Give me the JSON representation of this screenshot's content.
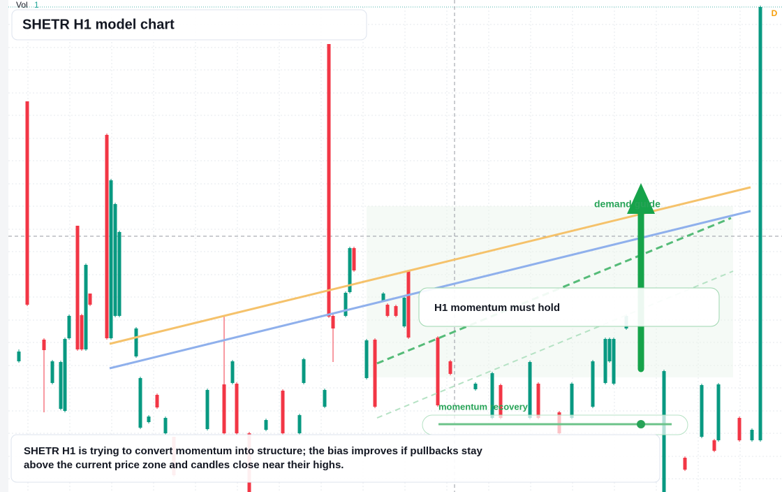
{
  "chart_data": {
    "type": "candlestick",
    "title": "SHETR H1 model chart",
    "volume_label": "Vol",
    "volume_value": "1",
    "interval_badge": "D",
    "annotations": [
      "demand guide",
      "H1 momentum must hold",
      "momentum recovery"
    ],
    "note": "SHETR H1 is trying to convert momentum into structure; the bias improves if pullbacks stay above the current price zone and candles close near their highs.",
    "up_color": "#089981",
    "down_color": "#f23645",
    "xlim": [
      0,
      186
    ],
    "ylim": [
      0,
      70
    ],
    "x": [
      4,
      6,
      10,
      12,
      14,
      15,
      16,
      18,
      19,
      20,
      21,
      25,
      26,
      27,
      28,
      32,
      33,
      35,
      37,
      39,
      41,
      49,
      53,
      55,
      56,
      59,
      63,
      67,
      71,
      72,
      77,
      78,
      79,
      82,
      83,
      84,
      87,
      89,
      91,
      92,
      94,
      96,
      97,
      104,
      107,
      113,
      117,
      119,
      126,
      128,
      133,
      136,
      141,
      144,
      145,
      146,
      149,
      158,
      163,
      167,
      170,
      171,
      176,
      179,
      181
    ],
    "open": [
      18.7,
      55.9,
      21.8,
      15.6,
      11.9,
      11.6,
      22.0,
      38.1,
      25.3,
      20.4,
      28.4,
      51.1,
      22.0,
      25.2,
      25.2,
      19.4,
      9.2,
      10.0,
      13.9,
      8.4,
      7.9,
      9.0,
      15.4,
      15.6,
      15.5,
      8.4,
      8.9,
      14.5,
      8.4,
      15.6,
      12.2,
      64.1,
      25.2,
      25.2,
      28.6,
      34.9,
      16.3,
      21.8,
      27.4,
      26.8,
      26.6,
      23.7,
      31.6,
      22.1,
      18.7,
      14.7,
      10.6,
      15.3,
      10.6,
      15.5,
      11.4,
      10.6,
      12.2,
      15.6,
      18.7,
      15.5,
      23.4,
      0.0,
      4.9,
      7.9,
      7.4,
      7.4,
      10.6,
      7.4,
      7.4
    ],
    "high": [
      20.4,
      55.9,
      22.0,
      18.9,
      18.8,
      22.1,
      25.4,
      38.1,
      25.5,
      32.7,
      28.4,
      51.3,
      44.8,
      41.4,
      37.4,
      23.6,
      16.5,
      11.0,
      14.1,
      10.8,
      7.9,
      14.8,
      25.2,
      18.9,
      15.7,
      8.6,
      10.5,
      14.7,
      11.2,
      19.2,
      14.8,
      64.1,
      25.4,
      28.7,
      35.1,
      35.1,
      21.9,
      22.0,
      28.6,
      27.0,
      26.8,
      27.9,
      31.8,
      22.3,
      18.9,
      15.7,
      17.2,
      15.5,
      18.8,
      15.7,
      11.6,
      15.7,
      18.9,
      22.1,
      22.1,
      22.1,
      25.4,
      17.5,
      5.1,
      15.5,
      7.6,
      15.6,
      10.8,
      9.1,
      69.6
    ],
    "low": [
      18.5,
      26.6,
      11.4,
      15.4,
      11.7,
      11.4,
      21.8,
      20.2,
      20.2,
      20.2,
      26.6,
      21.8,
      21.8,
      25.0,
      25.0,
      19.2,
      9.0,
      9.8,
      11.9,
      8.2,
      2.2,
      8.8,
      8.2,
      15.4,
      8.2,
      0.0,
      8.7,
      8.2,
      8.2,
      15.4,
      12.0,
      24.9,
      18.6,
      25.0,
      28.4,
      31.5,
      16.1,
      12.0,
      27.2,
      25.0,
      25.0,
      23.5,
      21.9,
      12.2,
      16.7,
      14.5,
      10.4,
      10.4,
      10.4,
      10.4,
      8.2,
      10.4,
      12.0,
      15.4,
      18.5,
      15.3,
      23.2,
      0.0,
      3.0,
      7.7,
      5.7,
      7.2,
      7.2,
      7.2,
      7.2
    ],
    "close": [
      20.1,
      26.8,
      20.3,
      18.7,
      18.6,
      21.9,
      25.2,
      20.4,
      20.4,
      32.5,
      26.8,
      22.0,
      44.6,
      41.2,
      37.2,
      23.4,
      16.3,
      10.8,
      12.1,
      10.6,
      2.4,
      14.6,
      8.4,
      18.7,
      8.4,
      0.0,
      10.3,
      8.4,
      11.0,
      19.0,
      14.6,
      25.1,
      23.4,
      28.5,
      34.9,
      31.7,
      21.7,
      12.2,
      28.4,
      25.2,
      25.2,
      27.8,
      22.1,
      12.4,
      16.9,
      15.5,
      17.0,
      10.6,
      18.6,
      10.6,
      8.4,
      15.5,
      18.7,
      21.9,
      21.9,
      21.9,
      25.2,
      17.3,
      3.2,
      15.3,
      5.9,
      15.4,
      7.4,
      8.9,
      69.4
    ]
  }
}
